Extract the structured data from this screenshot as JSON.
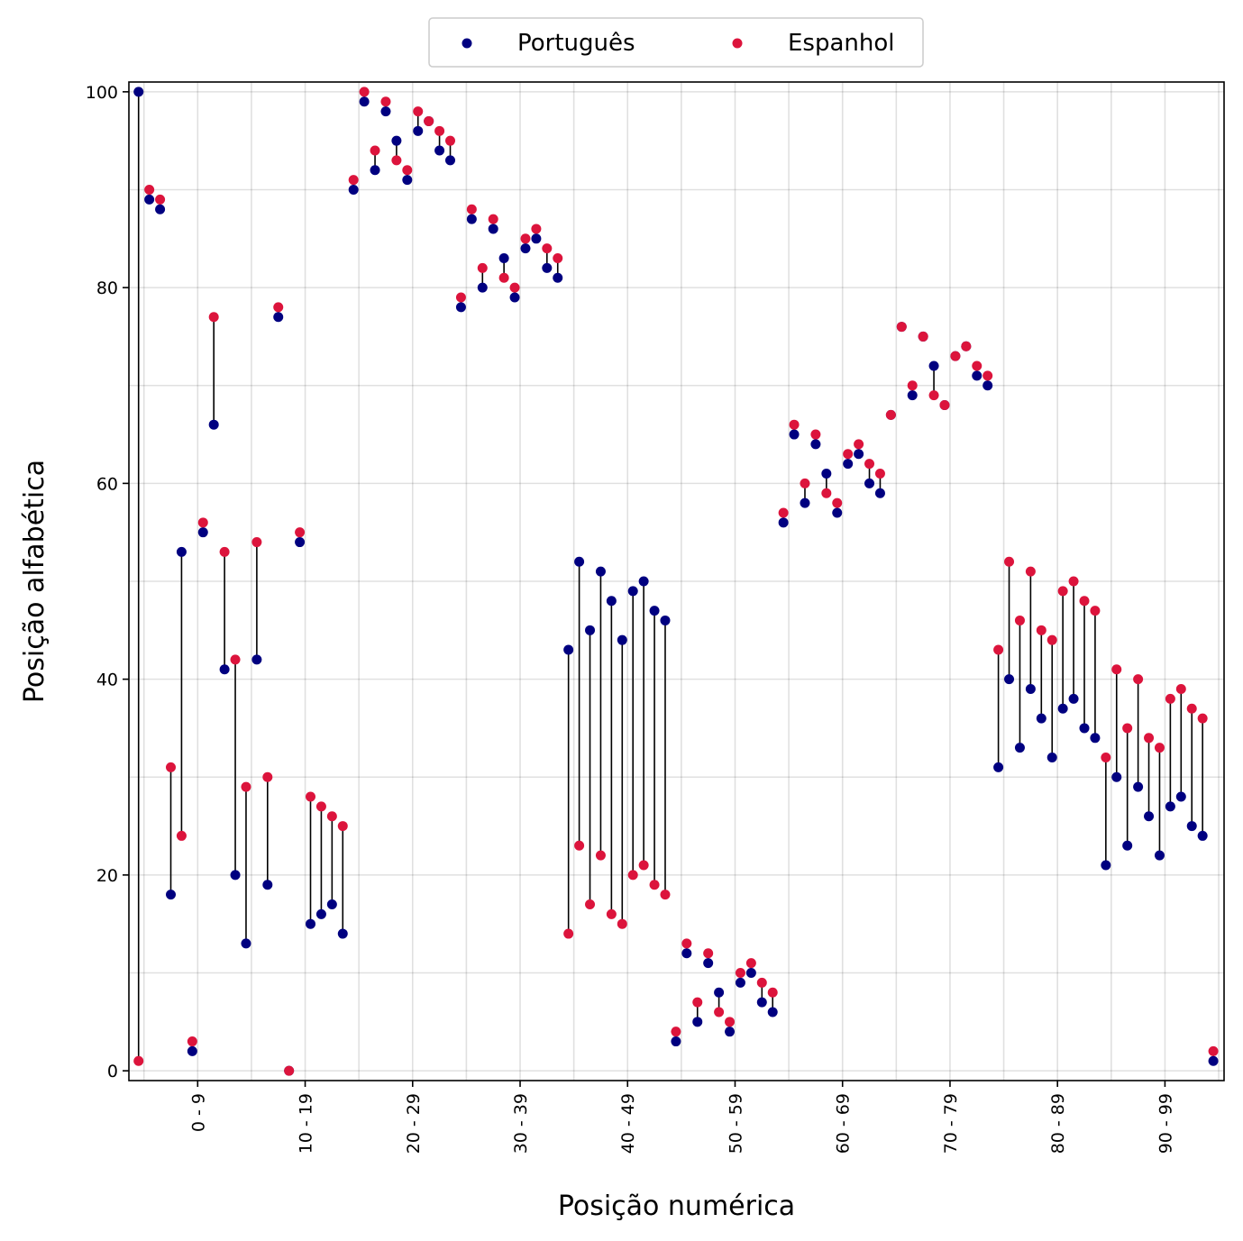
{
  "chart_data": {
    "type": "scatter",
    "xlabel": "Posição numérica",
    "ylabel": "Posição alfabética",
    "x": [
      0,
      1,
      2,
      3,
      4,
      5,
      6,
      7,
      8,
      9,
      10,
      11,
      12,
      13,
      14,
      15,
      16,
      17,
      18,
      19,
      20,
      21,
      22,
      23,
      24,
      25,
      26,
      27,
      28,
      29,
      30,
      31,
      32,
      33,
      34,
      35,
      36,
      37,
      38,
      39,
      40,
      41,
      42,
      43,
      44,
      45,
      46,
      47,
      48,
      49,
      50,
      51,
      52,
      53,
      54,
      55,
      56,
      57,
      58,
      59,
      60,
      61,
      62,
      63,
      64,
      65,
      66,
      67,
      68,
      69,
      70,
      71,
      72,
      73,
      74,
      75,
      76,
      77,
      78,
      79,
      80,
      81,
      82,
      83,
      84,
      85,
      86,
      87,
      88,
      89,
      90,
      91,
      92,
      93,
      94,
      95,
      96,
      97,
      98,
      99,
      100
    ],
    "xlim": [
      -0.9,
      101
    ],
    "ylim": [
      -1,
      101
    ],
    "x_ticks": [
      {
        "pos": 5.5,
        "label": "0 - 9"
      },
      {
        "pos": 15.5,
        "label": "10 - 19"
      },
      {
        "pos": 25.5,
        "label": "20 - 29"
      },
      {
        "pos": 35.5,
        "label": "30 - 39"
      },
      {
        "pos": 45.5,
        "label": "40 - 49"
      },
      {
        "pos": 55.5,
        "label": "50 - 59"
      },
      {
        "pos": 65.5,
        "label": "60 - 69"
      },
      {
        "pos": 75.5,
        "label": "70 - 79"
      },
      {
        "pos": 85.5,
        "label": "80 - 89"
      },
      {
        "pos": 95.5,
        "label": "90 - 99"
      }
    ],
    "x_gridlines": [
      0.5,
      5.5,
      10.5,
      15.5,
      20.5,
      25.5,
      30.5,
      35.5,
      40.5,
      45.5,
      50.5,
      55.5,
      60.5,
      65.5,
      70.5,
      75.5,
      80.5,
      85.5,
      90.5,
      95.5,
      100.5
    ],
    "y_ticks": [
      0,
      20,
      40,
      60,
      80,
      100
    ],
    "y_gridlines": [
      0,
      10,
      20,
      30,
      40,
      50,
      60,
      70,
      80,
      90,
      100
    ],
    "grid": true,
    "legend_position": "top-center",
    "series": [
      {
        "name": "Português",
        "color": "#000080",
        "values": [
          100,
          89,
          88,
          18,
          53,
          2,
          55,
          66,
          41,
          20,
          13,
          42,
          19,
          77,
          0,
          54,
          15,
          16,
          17,
          14,
          90,
          99,
          92,
          98,
          95,
          91,
          96,
          97,
          94,
          93,
          78,
          87,
          80,
          86,
          83,
          79,
          84,
          85,
          82,
          81,
          43,
          52,
          45,
          51,
          48,
          44,
          49,
          50,
          47,
          46,
          3,
          12,
          5,
          11,
          8,
          4,
          9,
          10,
          7,
          6,
          56,
          65,
          58,
          64,
          61,
          57,
          62,
          63,
          60,
          59,
          67,
          76,
          69,
          75,
          72,
          68,
          73,
          74,
          71,
          70,
          31,
          40,
          33,
          39,
          36,
          32,
          37,
          38,
          35,
          34,
          21,
          30,
          23,
          29,
          26,
          22,
          27,
          28,
          25,
          24,
          1
        ]
      },
      {
        "name": "Espanhol",
        "color": "#dc143c",
        "values": [
          1,
          90,
          89,
          31,
          24,
          3,
          56,
          77,
          53,
          42,
          29,
          54,
          30,
          78,
          0,
          55,
          28,
          27,
          26,
          25,
          91,
          100,
          94,
          99,
          93,
          92,
          98,
          97,
          96,
          95,
          79,
          88,
          82,
          87,
          81,
          80,
          85,
          86,
          84,
          83,
          14,
          23,
          17,
          22,
          16,
          15,
          20,
          21,
          19,
          18,
          4,
          13,
          7,
          12,
          6,
          5,
          10,
          11,
          9,
          8,
          57,
          66,
          60,
          65,
          59,
          58,
          63,
          64,
          62,
          61,
          67,
          76,
          70,
          75,
          69,
          68,
          73,
          74,
          72,
          71,
          43,
          52,
          46,
          51,
          45,
          44,
          49,
          50,
          48,
          47,
          32,
          41,
          35,
          40,
          34,
          33,
          38,
          39,
          37,
          36,
          2
        ]
      }
    ]
  }
}
